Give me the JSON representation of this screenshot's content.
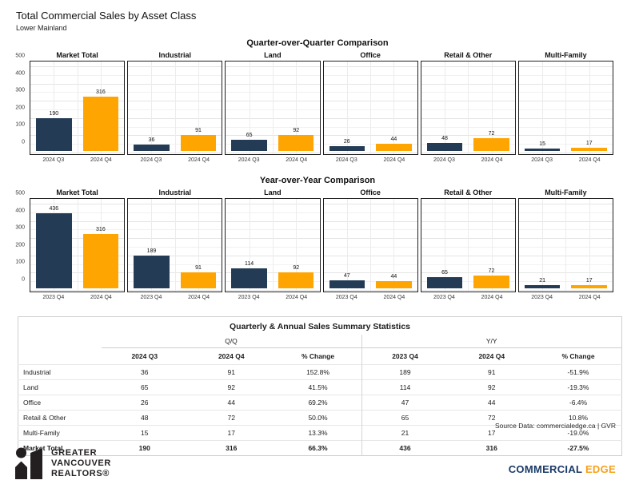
{
  "page": {
    "title": "Total Commercial Sales by Asset Class",
    "subtitle": "Lower Mainland"
  },
  "colors": {
    "bar_previous": "#233B55",
    "bar_current": "#FFA502",
    "commercial_navy": "#1B3A67",
    "edge_orange": "#F7A11B",
    "logo_black": "#231F20"
  },
  "chart_data": [
    {
      "type": "bar",
      "title": "Quarter-over-Quarter Comparison",
      "categories": [
        "2024 Q3",
        "2024 Q4"
      ],
      "ylim": [
        0,
        500
      ],
      "yticks": [
        0,
        100,
        200,
        300,
        400,
        500
      ],
      "grid": true,
      "panels": [
        {
          "name": "Market Total",
          "values": [
            190,
            316
          ]
        },
        {
          "name": "Industrial",
          "values": [
            36,
            91
          ]
        },
        {
          "name": "Land",
          "values": [
            65,
            92
          ]
        },
        {
          "name": "Office",
          "values": [
            26,
            44
          ]
        },
        {
          "name": "Retail & Other",
          "values": [
            48,
            72
          ]
        },
        {
          "name": "Multi-Family",
          "values": [
            15,
            17
          ]
        }
      ]
    },
    {
      "type": "bar",
      "title": "Year-over-Year Comparison",
      "categories": [
        "2023 Q4",
        "2024 Q4"
      ],
      "ylim": [
        0,
        500
      ],
      "yticks": [
        0,
        100,
        200,
        300,
        400,
        500
      ],
      "grid": true,
      "panels": [
        {
          "name": "Market Total",
          "values": [
            436,
            316
          ]
        },
        {
          "name": "Industrial",
          "values": [
            189,
            91
          ]
        },
        {
          "name": "Land",
          "values": [
            114,
            92
          ]
        },
        {
          "name": "Office",
          "values": [
            47,
            44
          ]
        },
        {
          "name": "Retail & Other",
          "values": [
            65,
            72
          ]
        },
        {
          "name": "Multi-Family",
          "values": [
            21,
            17
          ]
        }
      ]
    }
  ],
  "table": {
    "title": "Quarterly & Annual Sales Summary Statistics",
    "groups": [
      {
        "label": "Q/Q",
        "columns": [
          "2024 Q3",
          "2024 Q4",
          "% Change"
        ]
      },
      {
        "label": "Y/Y",
        "columns": [
          "2023 Q4",
          "2024 Q4",
          "% Change"
        ]
      }
    ],
    "rows": [
      {
        "label": "Industrial",
        "values": [
          "36",
          "91",
          "152.8%",
          "189",
          "91",
          "-51.9%"
        ],
        "bold": false
      },
      {
        "label": "Land",
        "values": [
          "65",
          "92",
          "41.5%",
          "114",
          "92",
          "-19.3%"
        ],
        "bold": false
      },
      {
        "label": "Office",
        "values": [
          "26",
          "44",
          "69.2%",
          "47",
          "44",
          "-6.4%"
        ],
        "bold": false
      },
      {
        "label": "Retail & Other",
        "values": [
          "48",
          "72",
          "50.0%",
          "65",
          "72",
          "10.8%"
        ],
        "bold": false
      },
      {
        "label": "Multi-Family",
        "values": [
          "15",
          "17",
          "13.3%",
          "21",
          "17",
          "-19.0%"
        ],
        "bold": false
      },
      {
        "label": "Market Total",
        "values": [
          "190",
          "316",
          "66.3%",
          "436",
          "316",
          "-27.5%"
        ],
        "bold": true
      }
    ]
  },
  "footer": {
    "source": "Source Data: commercialedge.ca | GVR",
    "gvr_logo_lines": [
      "GREATER",
      "VANCOUVER",
      "REALTORS®"
    ],
    "commercial": "COMMERCIAL",
    "edge": "EDGE"
  }
}
